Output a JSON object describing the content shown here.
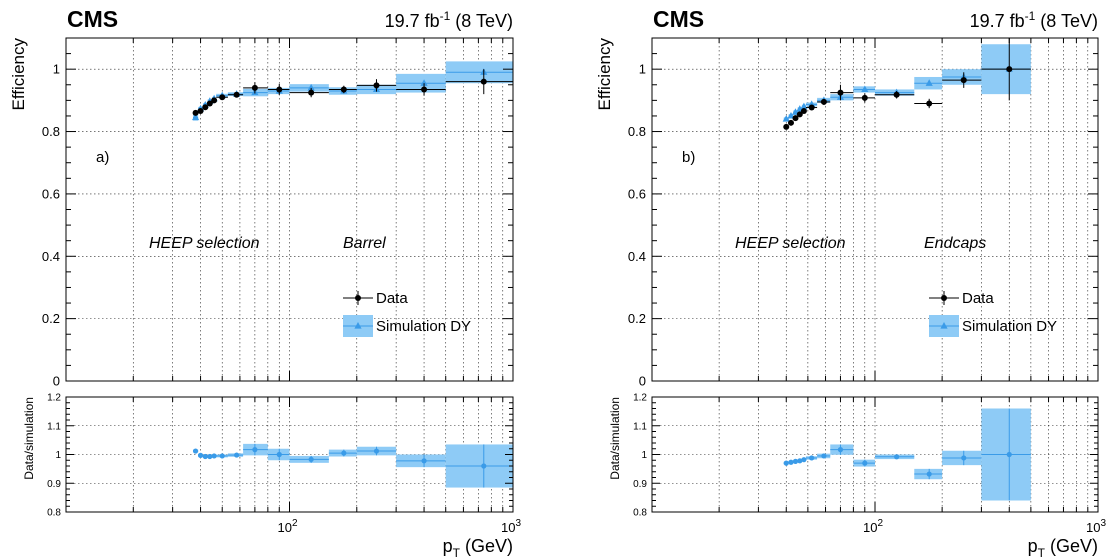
{
  "chart_data": [
    {
      "type": "scatter",
      "panel_label": "a)",
      "experiment": "CMS",
      "lumi": "19.7 fb",
      "lumi_exp": "-1",
      "energy": "(8 TeV)",
      "ylabel": "Efficiency",
      "ratio_ylabel": "Data/simulation",
      "xlabel": "p",
      "xlabel_sub": "T",
      "xlabel_unit": "(GeV)",
      "x_scale": "log",
      "xlim": [
        10,
        1000
      ],
      "ylim": [
        0,
        1.1
      ],
      "ratio_ylim": [
        0.8,
        1.2
      ],
      "y_ticks": [
        "0",
        "0.2",
        "0.4",
        "0.6",
        "0.8",
        "1"
      ],
      "ratio_y_ticks": [
        "0.8",
        "0.9",
        "1",
        "1.1",
        "1.2"
      ],
      "x_tick_base": "10",
      "x_tick_exps": [
        "2",
        "3"
      ],
      "annotations": [
        "HEEP selection",
        "Barrel"
      ],
      "legend": {
        "position": "lower-right",
        "entries": [
          "Data",
          "Simulation DY"
        ]
      },
      "series": [
        {
          "name": "Data",
          "points": [
            {
              "x": 38,
              "y": 0.86,
              "ey": 0.006,
              "xlo": 37,
              "xhi": 39
            },
            {
              "x": 40,
              "y": 0.866,
              "ey": 0.006,
              "xlo": 39,
              "xhi": 41
            },
            {
              "x": 42,
              "y": 0.878,
              "ey": 0.006,
              "xlo": 41,
              "xhi": 43
            },
            {
              "x": 44,
              "y": 0.89,
              "ey": 0.006,
              "xlo": 43,
              "xhi": 45
            },
            {
              "x": 46,
              "y": 0.9,
              "ey": 0.006,
              "xlo": 45,
              "xhi": 47
            },
            {
              "x": 50,
              "y": 0.91,
              "ey": 0.006,
              "xlo": 47,
              "xhi": 53
            },
            {
              "x": 58,
              "y": 0.918,
              "ey": 0.008,
              "xlo": 53,
              "xhi": 62
            },
            {
              "x": 70,
              "y": 0.94,
              "ey": 0.018,
              "xlo": 62,
              "xhi": 80
            },
            {
              "x": 90,
              "y": 0.935,
              "ey": 0.018,
              "xlo": 80,
              "xhi": 100
            },
            {
              "x": 125,
              "y": 0.925,
              "ey": 0.015,
              "xlo": 100,
              "xhi": 150
            },
            {
              "x": 175,
              "y": 0.935,
              "ey": 0.012,
              "xlo": 150,
              "xhi": 200
            },
            {
              "x": 245,
              "y": 0.948,
              "ey": 0.02,
              "xlo": 200,
              "xhi": 300
            },
            {
              "x": 400,
              "y": 0.935,
              "ey": 0.02,
              "xlo": 300,
              "xhi": 500
            },
            {
              "x": 740,
              "y": 0.96,
              "ey": 0.04,
              "xlo": 500,
              "xhi": 1000
            }
          ]
        },
        {
          "name": "Simulation DY",
          "points": [
            {
              "x": 38,
              "y": 0.845,
              "ey": 0.01,
              "xlo": 37,
              "xhi": 39
            },
            {
              "x": 40,
              "y": 0.873,
              "ey": 0.006,
              "xlo": 39,
              "xhi": 41
            },
            {
              "x": 42,
              "y": 0.885,
              "ey": 0.006,
              "xlo": 41,
              "xhi": 43
            },
            {
              "x": 44,
              "y": 0.897,
              "ey": 0.006,
              "xlo": 43,
              "xhi": 45
            },
            {
              "x": 46,
              "y": 0.905,
              "ey": 0.006,
              "xlo": 45,
              "xhi": 47
            },
            {
              "x": 50,
              "y": 0.915,
              "ey": 0.006,
              "xlo": 47,
              "xhi": 53
            },
            {
              "x": 58,
              "y": 0.92,
              "ey": 0.006,
              "xlo": 53,
              "xhi": 62
            },
            {
              "x": 70,
              "y": 0.925,
              "ey": 0.012,
              "xlo": 62,
              "xhi": 80
            },
            {
              "x": 90,
              "y": 0.93,
              "ey": 0.01,
              "xlo": 80,
              "xhi": 100
            },
            {
              "x": 125,
              "y": 0.94,
              "ey": 0.012,
              "xlo": 100,
              "xhi": 150
            },
            {
              "x": 175,
              "y": 0.93,
              "ey": 0.012,
              "xlo": 150,
              "xhi": 200
            },
            {
              "x": 245,
              "y": 0.935,
              "ey": 0.015,
              "xlo": 200,
              "xhi": 300
            },
            {
              "x": 400,
              "y": 0.955,
              "ey": 0.03,
              "xlo": 300,
              "xhi": 500
            },
            {
              "x": 740,
              "y": 0.99,
              "ey": 0.035,
              "xlo": 500,
              "xhi": 1000
            }
          ]
        }
      ],
      "ratio": [
        {
          "x": 38,
          "y": 1.012,
          "ey": 0.005,
          "xlo": 37,
          "xhi": 39
        },
        {
          "x": 40,
          "y": 0.997,
          "ey": 0.005,
          "xlo": 39,
          "xhi": 41
        },
        {
          "x": 42,
          "y": 0.993,
          "ey": 0.005,
          "xlo": 41,
          "xhi": 43
        },
        {
          "x": 44,
          "y": 0.993,
          "ey": 0.005,
          "xlo": 43,
          "xhi": 45
        },
        {
          "x": 46,
          "y": 0.995,
          "ey": 0.005,
          "xlo": 45,
          "xhi": 47
        },
        {
          "x": 50,
          "y": 0.995,
          "ey": 0.005,
          "xlo": 47,
          "xhi": 53
        },
        {
          "x": 58,
          "y": 0.998,
          "ey": 0.006,
          "xlo": 53,
          "xhi": 62
        },
        {
          "x": 70,
          "y": 1.017,
          "ey": 0.02,
          "xlo": 62,
          "xhi": 80
        },
        {
          "x": 90,
          "y": 1.0,
          "ey": 0.02,
          "xlo": 80,
          "xhi": 100
        },
        {
          "x": 125,
          "y": 0.983,
          "ey": 0.012,
          "xlo": 100,
          "xhi": 150
        },
        {
          "x": 175,
          "y": 1.005,
          "ey": 0.012,
          "xlo": 150,
          "xhi": 200
        },
        {
          "x": 245,
          "y": 1.012,
          "ey": 0.015,
          "xlo": 200,
          "xhi": 300
        },
        {
          "x": 400,
          "y": 0.978,
          "ey": 0.022,
          "xlo": 300,
          "xhi": 500
        },
        {
          "x": 740,
          "y": 0.96,
          "ey": 0.075,
          "xlo": 500,
          "xhi": 1000
        }
      ]
    },
    {
      "type": "scatter",
      "panel_label": "b)",
      "experiment": "CMS",
      "lumi": "19.7 fb",
      "lumi_exp": "-1",
      "energy": "(8 TeV)",
      "ylabel": "Efficiency",
      "ratio_ylabel": "Data/simulation",
      "xlabel": "p",
      "xlabel_sub": "T",
      "xlabel_unit": "(GeV)",
      "x_scale": "log",
      "xlim": [
        10,
        1000
      ],
      "ylim": [
        0,
        1.1
      ],
      "ratio_ylim": [
        0.8,
        1.2
      ],
      "y_ticks": [
        "0",
        "0.2",
        "0.4",
        "0.6",
        "0.8",
        "1"
      ],
      "ratio_y_ticks": [
        "0.8",
        "0.9",
        "1",
        "1.1",
        "1.2"
      ],
      "x_tick_base": "10",
      "x_tick_exps": [
        "2",
        "3"
      ],
      "annotations": [
        "HEEP selection",
        "Endcaps"
      ],
      "legend": {
        "position": "lower-right",
        "entries": [
          "Data",
          "Simulation DY"
        ]
      },
      "series": [
        {
          "name": "Data",
          "points": [
            {
              "x": 40,
              "y": 0.815,
              "ey": 0.008,
              "xlo": 39,
              "xhi": 41
            },
            {
              "x": 42,
              "y": 0.828,
              "ey": 0.008,
              "xlo": 41,
              "xhi": 43
            },
            {
              "x": 44,
              "y": 0.843,
              "ey": 0.008,
              "xlo": 43,
              "xhi": 45
            },
            {
              "x": 46,
              "y": 0.855,
              "ey": 0.008,
              "xlo": 45,
              "xhi": 47
            },
            {
              "x": 48,
              "y": 0.866,
              "ey": 0.008,
              "xlo": 47,
              "xhi": 49
            },
            {
              "x": 52,
              "y": 0.877,
              "ey": 0.008,
              "xlo": 49,
              "xhi": 55
            },
            {
              "x": 59,
              "y": 0.895,
              "ey": 0.01,
              "xlo": 55,
              "xhi": 63
            },
            {
              "x": 70,
              "y": 0.925,
              "ey": 0.025,
              "xlo": 63,
              "xhi": 80
            },
            {
              "x": 90,
              "y": 0.908,
              "ey": 0.015,
              "xlo": 80,
              "xhi": 100
            },
            {
              "x": 125,
              "y": 0.918,
              "ey": 0.012,
              "xlo": 100,
              "xhi": 150
            },
            {
              "x": 175,
              "y": 0.89,
              "ey": 0.015,
              "xlo": 150,
              "xhi": 200
            },
            {
              "x": 250,
              "y": 0.965,
              "ey": 0.025,
              "xlo": 200,
              "xhi": 300
            },
            {
              "x": 400,
              "y": 1.0,
              "ey": 0.1,
              "xlo": 300,
              "xhi": 500
            }
          ]
        },
        {
          "name": "Simulation DY",
          "points": [
            {
              "x": 40,
              "y": 0.84,
              "ey": 0.006,
              "xlo": 39,
              "xhi": 41
            },
            {
              "x": 42,
              "y": 0.85,
              "ey": 0.006,
              "xlo": 41,
              "xhi": 43
            },
            {
              "x": 44,
              "y": 0.862,
              "ey": 0.006,
              "xlo": 43,
              "xhi": 45
            },
            {
              "x": 46,
              "y": 0.872,
              "ey": 0.006,
              "xlo": 45,
              "xhi": 47
            },
            {
              "x": 48,
              "y": 0.88,
              "ey": 0.006,
              "xlo": 47,
              "xhi": 49
            },
            {
              "x": 52,
              "y": 0.887,
              "ey": 0.006,
              "xlo": 49,
              "xhi": 55
            },
            {
              "x": 59,
              "y": 0.9,
              "ey": 0.008,
              "xlo": 55,
              "xhi": 63
            },
            {
              "x": 70,
              "y": 0.91,
              "ey": 0.01,
              "xlo": 63,
              "xhi": 80
            },
            {
              "x": 90,
              "y": 0.935,
              "ey": 0.01,
              "xlo": 80,
              "xhi": 100
            },
            {
              "x": 125,
              "y": 0.925,
              "ey": 0.01,
              "xlo": 100,
              "xhi": 150
            },
            {
              "x": 175,
              "y": 0.955,
              "ey": 0.02,
              "xlo": 150,
              "xhi": 200
            },
            {
              "x": 250,
              "y": 0.975,
              "ey": 0.025,
              "xlo": 200,
              "xhi": 300
            },
            {
              "x": 400,
              "y": 1.0,
              "ey": 0.08,
              "xlo": 300,
              "xhi": 500
            }
          ]
        }
      ],
      "ratio": [
        {
          "x": 40,
          "y": 0.97,
          "ey": 0.005,
          "xlo": 39,
          "xhi": 41
        },
        {
          "x": 42,
          "y": 0.973,
          "ey": 0.005,
          "xlo": 41,
          "xhi": 43
        },
        {
          "x": 44,
          "y": 0.976,
          "ey": 0.005,
          "xlo": 43,
          "xhi": 45
        },
        {
          "x": 46,
          "y": 0.978,
          "ey": 0.005,
          "xlo": 45,
          "xhi": 47
        },
        {
          "x": 48,
          "y": 0.982,
          "ey": 0.005,
          "xlo": 47,
          "xhi": 49
        },
        {
          "x": 52,
          "y": 0.988,
          "ey": 0.006,
          "xlo": 49,
          "xhi": 55
        },
        {
          "x": 59,
          "y": 0.995,
          "ey": 0.008,
          "xlo": 55,
          "xhi": 63
        },
        {
          "x": 70,
          "y": 1.017,
          "ey": 0.018,
          "xlo": 63,
          "xhi": 80
        },
        {
          "x": 90,
          "y": 0.97,
          "ey": 0.012,
          "xlo": 80,
          "xhi": 100
        },
        {
          "x": 125,
          "y": 0.992,
          "ey": 0.008,
          "xlo": 100,
          "xhi": 150
        },
        {
          "x": 175,
          "y": 0.932,
          "ey": 0.018,
          "xlo": 150,
          "xhi": 200
        },
        {
          "x": 250,
          "y": 0.988,
          "ey": 0.025,
          "xlo": 200,
          "xhi": 300
        },
        {
          "x": 400,
          "y": 1.0,
          "ey": 0.16,
          "xlo": 300,
          "xhi": 500
        }
      ]
    }
  ],
  "colors": {
    "data": "#000000",
    "simulation": "#3a9be8",
    "simulation_band": "#8ecbf6"
  }
}
